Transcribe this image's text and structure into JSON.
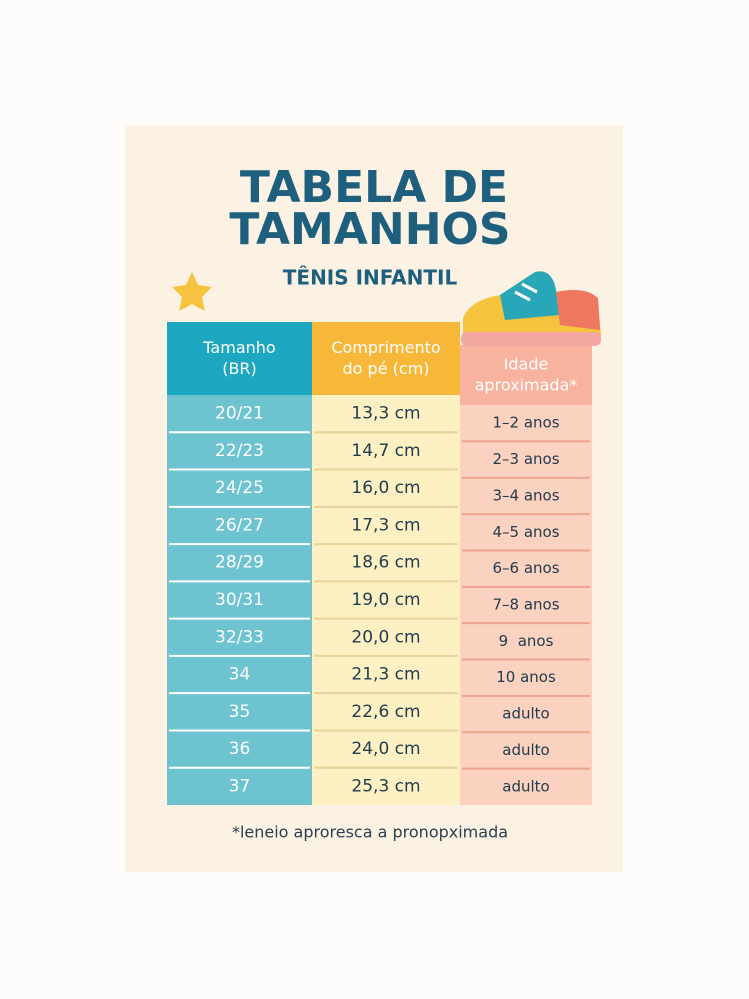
{
  "header": {
    "title": [
      "TABELA DE",
      "TAMANHOS"
    ],
    "subtitle": "TÊNIS INFANTIL"
  },
  "table": {
    "columns": [
      [
        "Tamanho",
        "(BR)"
      ],
      [
        "Comprimento",
        "do pé (cm)"
      ],
      [
        "Idade",
        "aproximada*"
      ]
    ],
    "rows": [
      [
        "20/21",
        "13,3 cm",
        "1–2 anos"
      ],
      [
        "22/23",
        "14,7 cm",
        "2–3 anos"
      ],
      [
        "24/25",
        "16,0 cm",
        "3–4 anos"
      ],
      [
        "26/27",
        "17,3 cm",
        "4–5 anos"
      ],
      [
        "28/29",
        "18,6 cm",
        "6–6 anos"
      ],
      [
        "30/31",
        "19,0 cm",
        "7–8 anos"
      ],
      [
        "32/33",
        "20,0 cm",
        "9  anos"
      ],
      [
        "34",
        "21,3 cm",
        "10 anos"
      ],
      [
        "35",
        "22,6 cm",
        "adulto"
      ],
      [
        "36",
        "24,0 cm",
        "adulto"
      ],
      [
        "37",
        "25,3 cm",
        "adulto"
      ]
    ]
  },
  "footnote": "*leneio aproresca a pronopximada"
}
